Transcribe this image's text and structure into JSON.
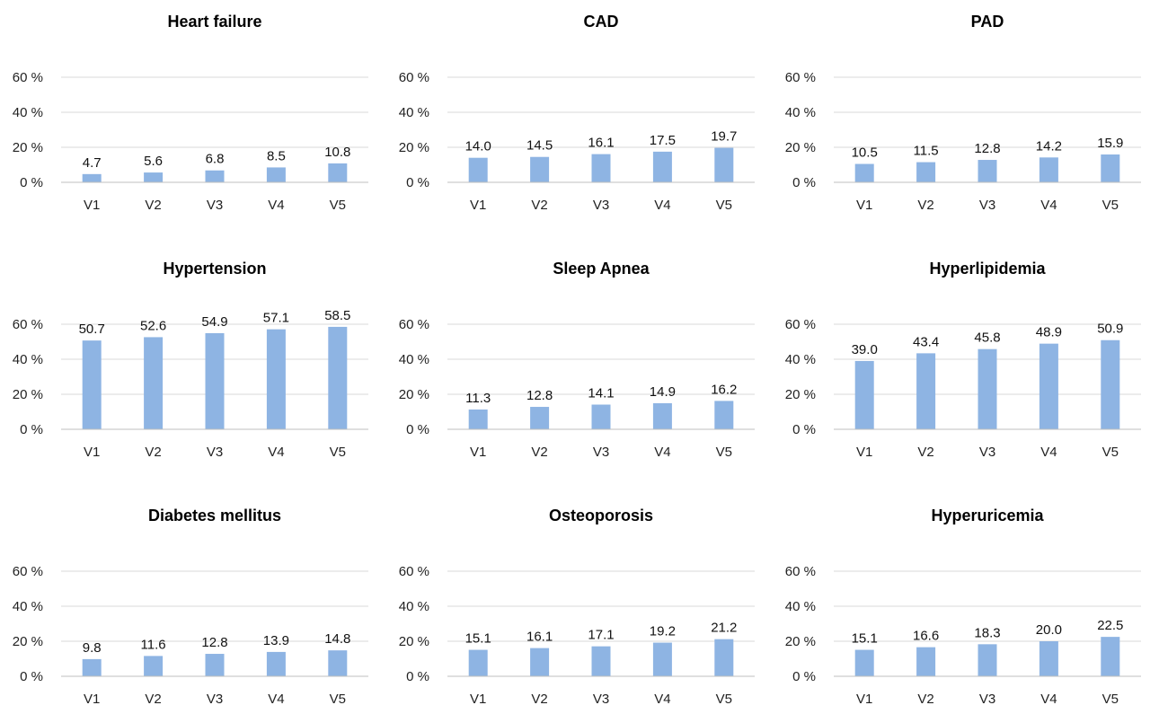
{
  "style": {
    "bar_color": "#8eb4e3",
    "grid_color": "#d9d9d9",
    "axis_color": "#bfbfbf"
  },
  "chart_data": [
    {
      "type": "bar",
      "title": "Heart failure",
      "categories": [
        "V1",
        "V2",
        "V3",
        "V4",
        "V5"
      ],
      "values": [
        4.7,
        5.6,
        6.8,
        8.5,
        10.8
      ],
      "value_labels": [
        "4.7",
        "5.6",
        "6.8",
        "8.5",
        "10.8"
      ],
      "yticks": [
        "0 %",
        "20 %",
        "40 %",
        "60 %"
      ],
      "ylim": [
        0,
        60
      ],
      "grid": true
    },
    {
      "type": "bar",
      "title": "CAD",
      "categories": [
        "V1",
        "V2",
        "V3",
        "V4",
        "V5"
      ],
      "values": [
        14.0,
        14.5,
        16.1,
        17.5,
        19.7
      ],
      "value_labels": [
        "14.0",
        "14.5",
        "16.1",
        "17.5",
        "19.7"
      ],
      "yticks": [
        "0 %",
        "20 %",
        "40 %",
        "60 %"
      ],
      "ylim": [
        0,
        60
      ],
      "grid": true
    },
    {
      "type": "bar",
      "title": "PAD",
      "categories": [
        "V1",
        "V2",
        "V3",
        "V4",
        "V5"
      ],
      "values": [
        10.5,
        11.5,
        12.8,
        14.2,
        15.9
      ],
      "value_labels": [
        "10.5",
        "11.5",
        "12.8",
        "14.2",
        "15.9"
      ],
      "yticks": [
        "0 %",
        "20 %",
        "40 %",
        "60 %"
      ],
      "ylim": [
        0,
        60
      ],
      "grid": true
    },
    {
      "type": "bar",
      "title": "Hypertension",
      "categories": [
        "V1",
        "V2",
        "V3",
        "V4",
        "V5"
      ],
      "values": [
        50.7,
        52.6,
        54.9,
        57.1,
        58.5
      ],
      "value_labels": [
        "50.7",
        "52.6",
        "54.9",
        "57.1",
        "58.5"
      ],
      "yticks": [
        "0 %",
        "20 %",
        "40 %",
        "60 %"
      ],
      "ylim": [
        0,
        60
      ],
      "grid": true
    },
    {
      "type": "bar",
      "title": "Sleep Apnea",
      "categories": [
        "V1",
        "V2",
        "V3",
        "V4",
        "V5"
      ],
      "values": [
        11.3,
        12.8,
        14.1,
        14.9,
        16.2
      ],
      "value_labels": [
        "11.3",
        "12.8",
        "14.1",
        "14.9",
        "16.2"
      ],
      "yticks": [
        "0 %",
        "20 %",
        "40 %",
        "60 %"
      ],
      "ylim": [
        0,
        60
      ],
      "grid": true
    },
    {
      "type": "bar",
      "title": "Hyperlipidemia",
      "categories": [
        "V1",
        "V2",
        "V3",
        "V4",
        "V5"
      ],
      "values": [
        39.0,
        43.4,
        45.8,
        48.9,
        50.9
      ],
      "value_labels": [
        "39.0",
        "43.4",
        "45.8",
        "48.9",
        "50.9"
      ],
      "yticks": [
        "0 %",
        "20 %",
        "40 %",
        "60 %"
      ],
      "ylim": [
        0,
        60
      ],
      "grid": true
    },
    {
      "type": "bar",
      "title": "Diabetes mellitus",
      "categories": [
        "V1",
        "V2",
        "V3",
        "V4",
        "V5"
      ],
      "values": [
        9.8,
        11.6,
        12.8,
        13.9,
        14.8
      ],
      "value_labels": [
        "9.8",
        "11.6",
        "12.8",
        "13.9",
        "14.8"
      ],
      "yticks": [
        "0 %",
        "20 %",
        "40 %",
        "60 %"
      ],
      "ylim": [
        0,
        60
      ],
      "grid": true
    },
    {
      "type": "bar",
      "title": "Osteoporosis",
      "categories": [
        "V1",
        "V2",
        "V3",
        "V4",
        "V5"
      ],
      "values": [
        15.1,
        16.1,
        17.1,
        19.2,
        21.2
      ],
      "value_labels": [
        "15.1",
        "16.1",
        "17.1",
        "19.2",
        "21.2"
      ],
      "yticks": [
        "0 %",
        "20 %",
        "40 %",
        "60 %"
      ],
      "ylim": [
        0,
        60
      ],
      "grid": true
    },
    {
      "type": "bar",
      "title": "Hyperuricemia",
      "categories": [
        "V1",
        "V2",
        "V3",
        "V4",
        "V5"
      ],
      "values": [
        15.1,
        16.6,
        18.3,
        20.0,
        22.5
      ],
      "value_labels": [
        "15.1",
        "16.6",
        "18.3",
        "20.0",
        "22.5"
      ],
      "yticks": [
        "0 %",
        "20 %",
        "40 %",
        "60 %"
      ],
      "ylim": [
        0,
        60
      ],
      "grid": true
    }
  ]
}
